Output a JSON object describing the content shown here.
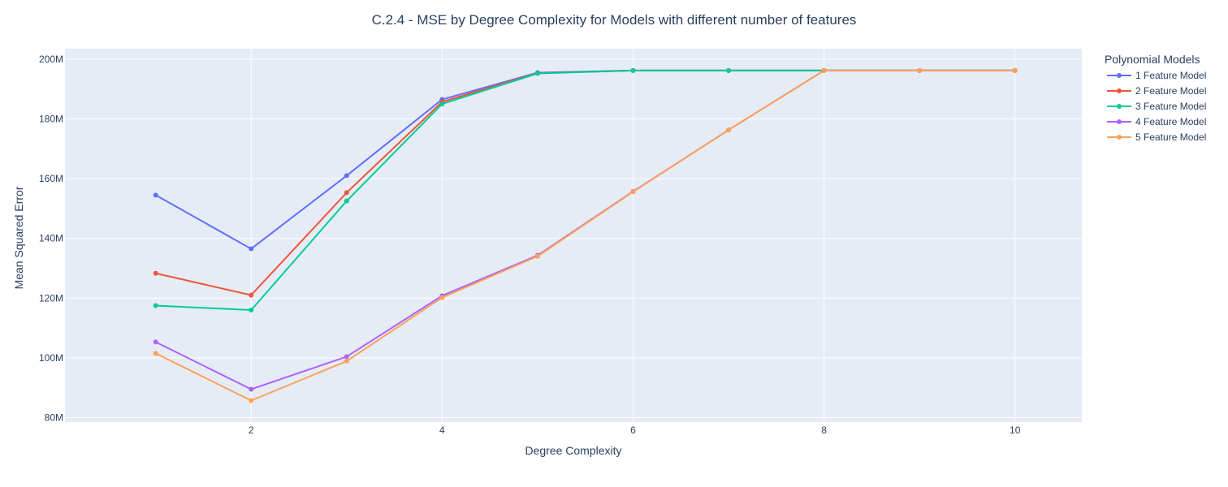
{
  "chart_data": {
    "type": "line",
    "title": "C.2.4 - MSE by Degree Complexity for Models with different number of features",
    "xlabel": "Degree Complexity",
    "ylabel": "Mean Squared Error",
    "xlim": [
      0.05,
      10.7
    ],
    "ylim": [
      78500000,
      203500000
    ],
    "x_ticks": [
      2,
      4,
      6,
      8,
      10
    ],
    "x_tick_labels": [
      "2",
      "4",
      "6",
      "8",
      "10"
    ],
    "y_ticks": [
      80000000,
      100000000,
      120000000,
      140000000,
      160000000,
      180000000,
      200000000
    ],
    "y_tick_labels": [
      "80M",
      "100M",
      "120M",
      "140M",
      "160M",
      "180M",
      "200M"
    ],
    "grid": true,
    "legend": {
      "title": "Polynomial Models",
      "position": "top-right, outside plot"
    },
    "x": [
      1,
      2,
      3,
      4,
      5,
      6,
      7,
      8,
      9,
      10
    ],
    "series": [
      {
        "name": "1 Feature Model",
        "color": "#636efa",
        "values": [
          154500000,
          136500000,
          161000000,
          186500000,
          195500000,
          196200000,
          196200000,
          196200000,
          196200000,
          196200000
        ]
      },
      {
        "name": "2 Feature Model",
        "color": "#ef553b",
        "values": [
          128300000,
          121000000,
          155300000,
          185700000,
          195300000,
          196200000,
          196200000,
          196200000,
          196200000,
          196200000
        ]
      },
      {
        "name": "3 Feature Model",
        "color": "#00cc96",
        "values": [
          117500000,
          116000000,
          152500000,
          185000000,
          195200000,
          196200000,
          196200000,
          196200000,
          196200000,
          196200000
        ]
      },
      {
        "name": "4 Feature Model",
        "color": "#ab63fa",
        "values": [
          105300000,
          89500000,
          100400000,
          120800000,
          134300000,
          155700000,
          176300000,
          196200000,
          196200000,
          196200000
        ]
      },
      {
        "name": "5 Feature Model",
        "color": "#ffa15a",
        "values": [
          101500000,
          85700000,
          98900000,
          120200000,
          134000000,
          155600000,
          176300000,
          196200000,
          196200000,
          196200000
        ]
      }
    ]
  },
  "colors": {
    "plot_background": "#e5ecf6",
    "grid": "#ffffff",
    "text": "#2a3f5f"
  }
}
